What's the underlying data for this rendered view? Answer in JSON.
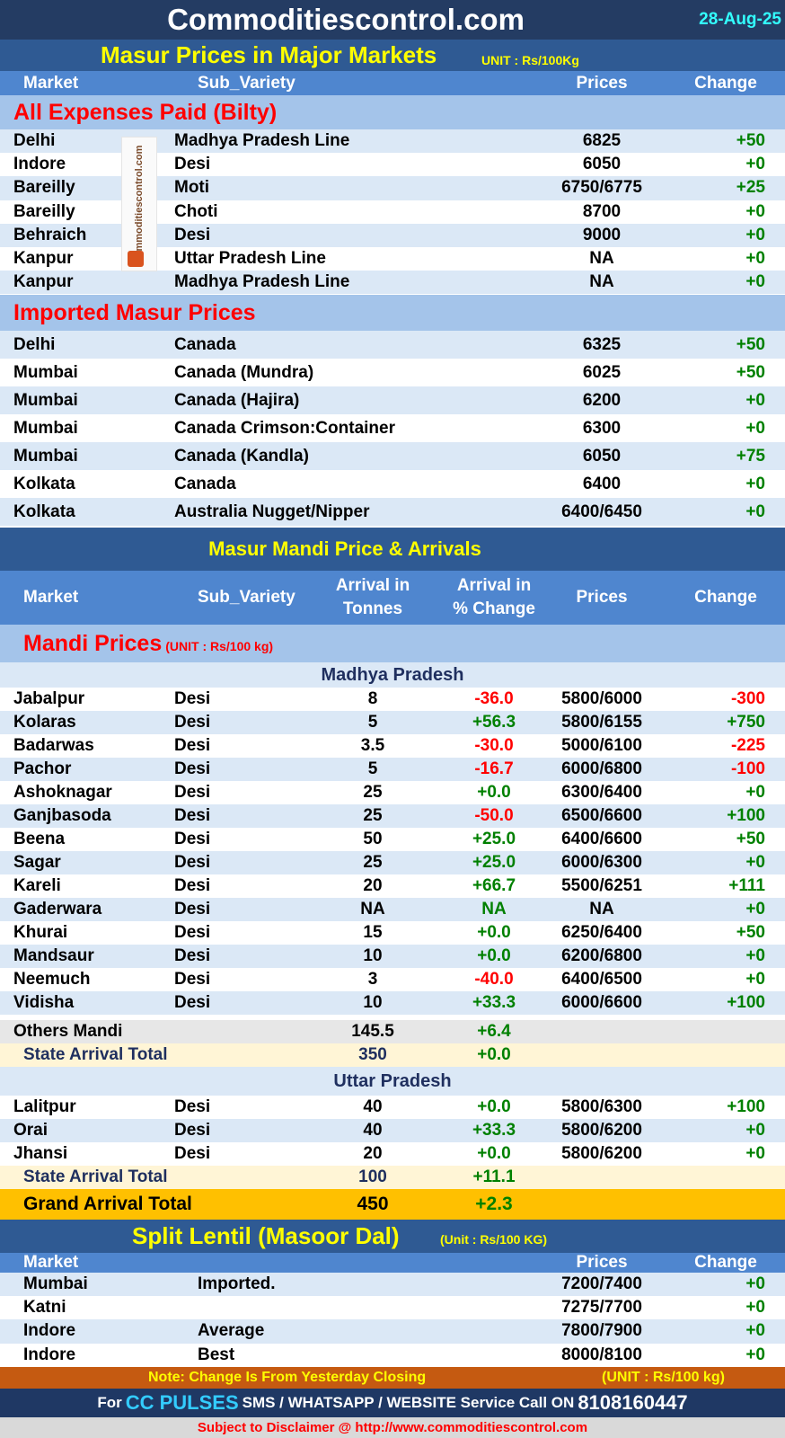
{
  "header": {
    "site": "Commoditiescontrol.com",
    "date": "28-Aug-25"
  },
  "major": {
    "title": "Masur Prices in Major Markets",
    "unit": "UNIT : Rs/100Kg",
    "columns": {
      "market": "Market",
      "sub_variety": "Sub_Variety",
      "prices": "Prices",
      "change": "Change"
    },
    "bilty_heading": "All Expenses Paid (Bilty)",
    "bilty_rows": [
      {
        "market": "Delhi",
        "variety": "Madhya Pradesh Line",
        "price": "6825",
        "change": "+50"
      },
      {
        "market": "Indore",
        "variety": "Desi",
        "price": "6050",
        "change": "+0"
      },
      {
        "market": "Bareilly",
        "variety": "Moti",
        "price": "6750/6775",
        "change": "+25"
      },
      {
        "market": "Bareilly",
        "variety": "Choti",
        "price": "8700",
        "change": "+0"
      },
      {
        "market": "Behraich",
        "variety": "Desi",
        "price": "9000",
        "change": "+0"
      },
      {
        "market": "Kanpur",
        "variety": "Uttar Pradesh Line",
        "price": "NA",
        "change": "+0"
      },
      {
        "market": "Kanpur",
        "variety": "Madhya Pradesh Line",
        "price": "NA",
        "change": "+0"
      }
    ],
    "logo_text": "commoditiescontrol.com",
    "imported_heading": "Imported Masur Prices",
    "imported_rows": [
      {
        "market": "Delhi",
        "variety": "Canada",
        "price": "6325",
        "change": "+50"
      },
      {
        "market": "Mumbai",
        "variety": "Canada (Mundra)",
        "price": "6025",
        "change": "+50"
      },
      {
        "market": "Mumbai",
        "variety": "Canada (Hajira)",
        "price": "6200",
        "change": "+0"
      },
      {
        "market": "Mumbai",
        "variety": "Canada Crimson:Container",
        "price": "6300",
        "change": "+0"
      },
      {
        "market": "Mumbai",
        "variety": "Canada (Kandla)",
        "price": "6050",
        "change": "+75"
      },
      {
        "market": "Kolkata",
        "variety": "Canada",
        "price": "6400",
        "change": "+0"
      },
      {
        "market": "Kolkata",
        "variety": "Australia Nugget/Nipper",
        "price": "6400/6450",
        "change": "+0"
      }
    ]
  },
  "mandi": {
    "title": "Masur Mandi Price & Arrivals",
    "columns": {
      "market": "Market",
      "sub_variety": "Sub_Variety",
      "arrival_line1": "Arrival in",
      "arrival_line2": "Tonnes",
      "pct_line1": "Arrival  in",
      "pct_line2": "% Change",
      "prices": "Prices",
      "change": "Change"
    },
    "heading": "Mandi Prices",
    "unit": "(UNIT : Rs/100 kg)",
    "mp": {
      "state": "Madhya Pradesh",
      "rows": [
        {
          "market": "Jabalpur",
          "variety": "Desi",
          "arrival": "8",
          "pct": "-36.0",
          "price": "5800/6000",
          "change": "-300"
        },
        {
          "market": "Kolaras",
          "variety": "Desi",
          "arrival": "5",
          "pct": "+56.3",
          "price": "5800/6155",
          "change": "+750"
        },
        {
          "market": "Badarwas",
          "variety": "Desi",
          "arrival": "3.5",
          "pct": "-30.0",
          "price": "5000/6100",
          "change": "-225"
        },
        {
          "market": "Pachor",
          "variety": "Desi",
          "arrival": "5",
          "pct": "-16.7",
          "price": "6000/6800",
          "change": "-100"
        },
        {
          "market": "Ashoknagar",
          "variety": "Desi",
          "arrival": "25",
          "pct": "+0.0",
          "price": "6300/6400",
          "change": "+0"
        },
        {
          "market": "Ganjbasoda",
          "variety": "Desi",
          "arrival": "25",
          "pct": "-50.0",
          "price": "6500/6600",
          "change": "+100"
        },
        {
          "market": "Beena",
          "variety": "Desi",
          "arrival": "50",
          "pct": "+25.0",
          "price": "6400/6600",
          "change": "+50"
        },
        {
          "market": "Sagar",
          "variety": "Desi",
          "arrival": "25",
          "pct": "+25.0",
          "price": "6000/6300",
          "change": "+0"
        },
        {
          "market": "Kareli",
          "variety": "Desi",
          "arrival": "20",
          "pct": "+66.7",
          "price": "5500/6251",
          "change": "+111"
        },
        {
          "market": "Gaderwara",
          "variety": "Desi",
          "arrival": "NA",
          "pct": "NA",
          "price": "NA",
          "change": "+0"
        },
        {
          "market": "Khurai",
          "variety": "Desi",
          "arrival": "15",
          "pct": "+0.0",
          "price": "6250/6400",
          "change": "+50"
        },
        {
          "market": "Mandsaur",
          "variety": "Desi",
          "arrival": "10",
          "pct": "+0.0",
          "price": "6200/6800",
          "change": "+0"
        },
        {
          "market": "Neemuch",
          "variety": "Desi",
          "arrival": "3",
          "pct": "-40.0",
          "price": "6400/6500",
          "change": "+0"
        },
        {
          "market": "Vidisha",
          "variety": "Desi",
          "arrival": "10",
          "pct": "+33.3",
          "price": "6000/6600",
          "change": "+100"
        }
      ],
      "others": {
        "label": "Others Mandi",
        "arrival": "145.5",
        "pct": "+6.4"
      },
      "total": {
        "label": "State Arrival Total",
        "arrival": "350",
        "pct": "+0.0"
      }
    },
    "up": {
      "state": "Uttar Pradesh",
      "rows": [
        {
          "market": "Lalitpur",
          "variety": "Desi",
          "arrival": "40",
          "pct": "+0.0",
          "price": "5800/6300",
          "change": "+100"
        },
        {
          "market": "Orai",
          "variety": "Desi",
          "arrival": "40",
          "pct": "+33.3",
          "price": "5800/6200",
          "change": "+0"
        },
        {
          "market": "Jhansi",
          "variety": "Desi",
          "arrival": "20",
          "pct": "+0.0",
          "price": "5800/6200",
          "change": "+0"
        }
      ],
      "total": {
        "label": "State Arrival Total",
        "arrival": "100",
        "pct": "+11.1"
      }
    },
    "grand_total": {
      "label": "Grand Arrival Total",
      "arrival": "450",
      "pct": "+2.3"
    }
  },
  "dal": {
    "title": "Split Lentil (Masoor Dal)",
    "unit": "(Unit : Rs/100 KG)",
    "columns": {
      "market": "Market",
      "prices": "Prices",
      "change": "Change"
    },
    "rows": [
      {
        "market": "Mumbai",
        "variety": "Imported.",
        "price": "7200/7400",
        "change": "+0"
      },
      {
        "market": "Katni",
        "variety": "",
        "price": "7275/7700",
        "change": "+0"
      },
      {
        "market": "Indore",
        "variety": "Average",
        "price": "7800/7900",
        "change": "+0"
      },
      {
        "market": "Indore",
        "variety": "Best",
        "price": "8000/8100",
        "change": "+0"
      }
    ]
  },
  "footer": {
    "note": "Note: Change Is From Yesterday Closing",
    "unit": "(UNIT : Rs/100 kg)",
    "service_prefix": "For",
    "service_brand": "CC PULSES",
    "service_text": "SMS / WHATSAPP / WEBSITE Service Call  ON",
    "phone": "8108160447",
    "disclaimer": "Subject to Disclaimer @  http://www.commoditiescontrol.com"
  }
}
